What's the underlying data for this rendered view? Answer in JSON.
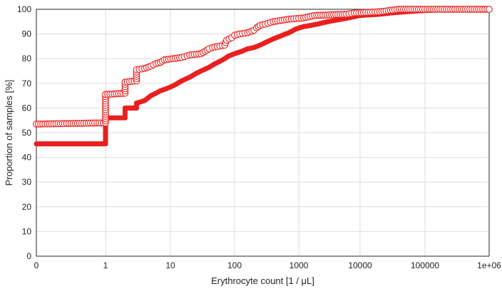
{
  "chart_data": {
    "type": "scatter",
    "x_scale": "log",
    "xlabel": "Erythrocyte count [1 / μL]",
    "ylabel": "Proportion of samples [%]",
    "xlim": [
      0,
      1000000
    ],
    "ylim": [
      0,
      100
    ],
    "x_tick_labels": [
      "0",
      "1",
      "10",
      "100",
      "1000",
      "10000",
      "100000",
      "1e+06"
    ],
    "y_tick_labels": [
      "0",
      "10",
      "20",
      "30",
      "40",
      "50",
      "60",
      "70",
      "80",
      "90",
      "100"
    ],
    "grid": true,
    "color": "#e8201f",
    "series": [
      {
        "marker": "filled-circle",
        "points": [
          [
            0,
            45.5
          ],
          [
            1,
            45.5
          ],
          [
            1,
            54
          ],
          [
            1,
            56
          ],
          [
            2,
            56
          ],
          [
            2,
            58
          ],
          [
            2,
            60
          ],
          [
            3,
            60
          ],
          [
            3,
            62
          ],
          [
            4,
            63
          ],
          [
            5,
            65
          ],
          [
            6,
            66
          ],
          [
            7,
            67
          ],
          [
            8,
            67.5
          ],
          [
            10,
            68.5
          ],
          [
            12,
            69.5
          ],
          [
            15,
            71
          ],
          [
            20,
            72.5
          ],
          [
            25,
            74
          ],
          [
            30,
            75
          ],
          [
            40,
            76.5
          ],
          [
            50,
            78
          ],
          [
            60,
            79
          ],
          [
            70,
            80
          ],
          [
            80,
            81
          ],
          [
            100,
            82
          ],
          [
            130,
            83
          ],
          [
            160,
            84
          ],
          [
            200,
            84.5
          ],
          [
            250,
            85.5
          ],
          [
            300,
            86.5
          ],
          [
            400,
            88
          ],
          [
            500,
            89
          ],
          [
            700,
            90.5
          ],
          [
            900,
            92
          ],
          [
            1200,
            93
          ],
          [
            1600,
            93.5
          ],
          [
            2000,
            94
          ],
          [
            3000,
            95
          ],
          [
            5000,
            96
          ],
          [
            8000,
            97
          ],
          [
            10000,
            97.5
          ],
          [
            20000,
            98
          ],
          [
            30000,
            98.5
          ],
          [
            50000,
            99
          ],
          [
            100000,
            99.5
          ],
          [
            200000,
            99.8
          ],
          [
            300000,
            100
          ],
          [
            500000,
            100
          ],
          [
            1000000,
            100
          ]
        ]
      },
      {
        "marker": "open-circle",
        "points": [
          [
            0,
            53.5
          ],
          [
            1,
            54
          ],
          [
            1,
            65.5
          ],
          [
            2,
            66
          ],
          [
            2,
            70.5
          ],
          [
            3,
            71
          ],
          [
            3,
            75.5
          ],
          [
            4,
            76
          ],
          [
            5,
            77
          ],
          [
            6,
            78
          ],
          [
            7,
            78.5
          ],
          [
            8,
            79.5
          ],
          [
            15,
            80.5
          ],
          [
            20,
            81.5
          ],
          [
            30,
            82
          ],
          [
            40,
            84
          ],
          [
            45,
            84.5
          ],
          [
            70,
            85.5
          ],
          [
            75,
            87.5
          ],
          [
            90,
            88.5
          ],
          [
            100,
            89.5
          ],
          [
            120,
            90
          ],
          [
            160,
            90.5
          ],
          [
            200,
            91.5
          ],
          [
            220,
            92.5
          ],
          [
            250,
            93.5
          ],
          [
            300,
            94
          ],
          [
            400,
            95
          ],
          [
            700,
            96
          ],
          [
            1200,
            96.5
          ],
          [
            1800,
            97.5
          ],
          [
            6000,
            98
          ],
          [
            8000,
            98.5
          ],
          [
            20000,
            99
          ],
          [
            40000,
            100
          ],
          [
            1000000,
            100
          ]
        ]
      }
    ]
  }
}
